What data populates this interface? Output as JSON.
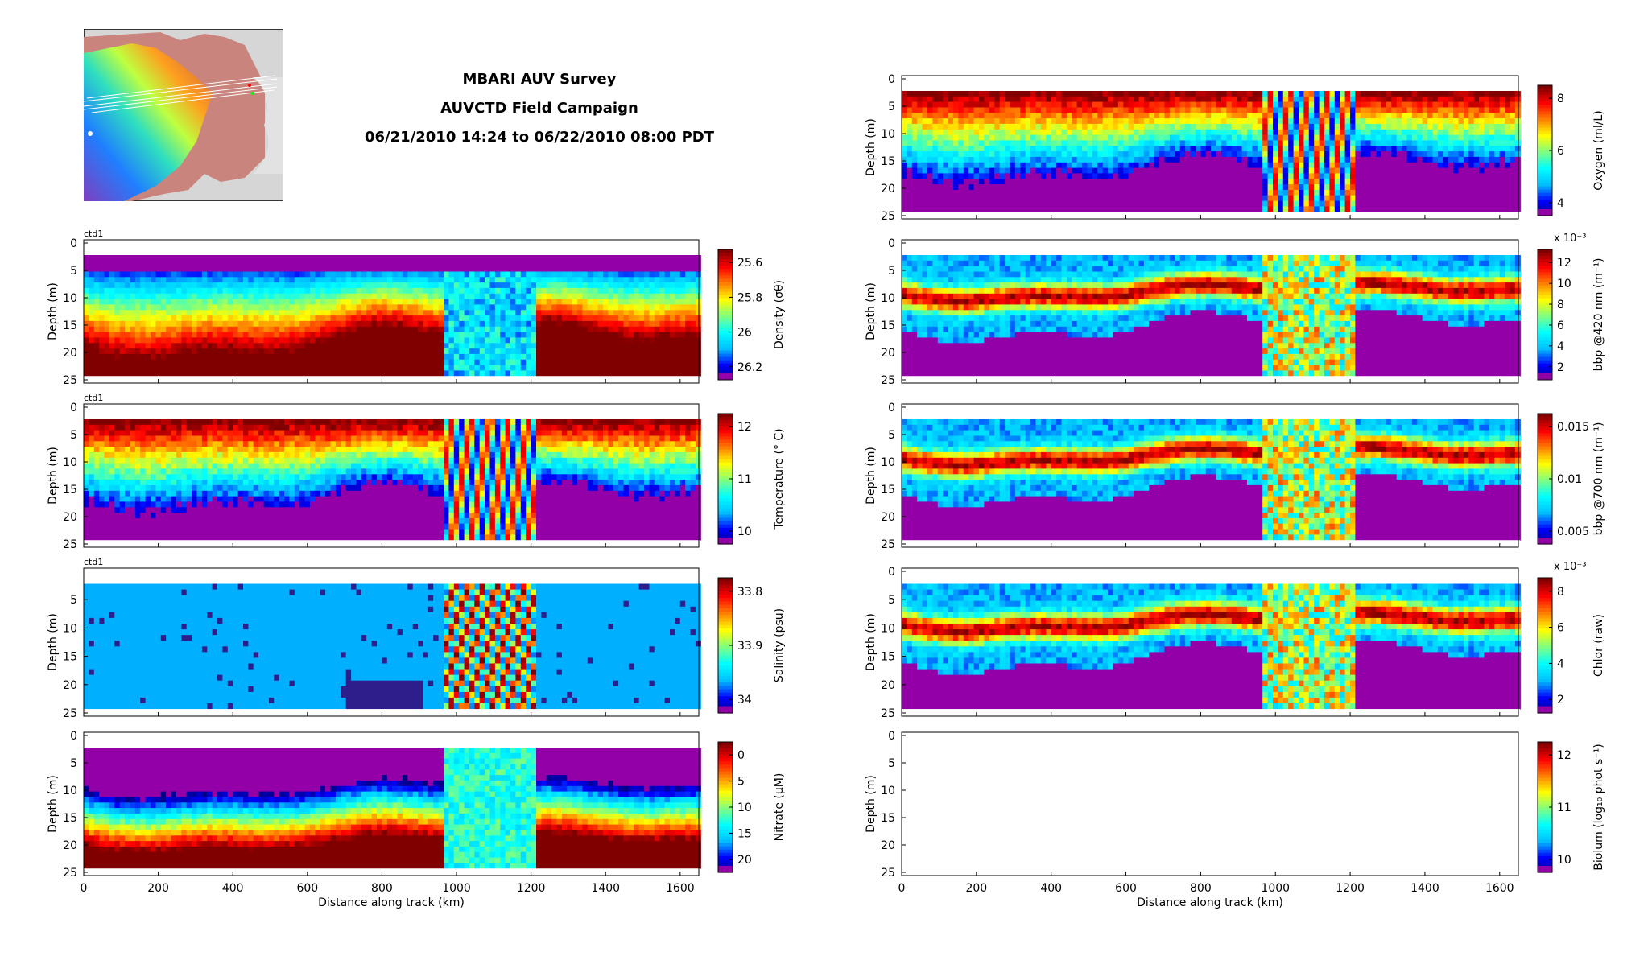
{
  "header": {
    "line1": "MBARI AUV Survey",
    "line2": "AUVCTD Field Campaign",
    "line3": "06/21/2010 14:24 to 06/22/2010 08:00 PDT"
  },
  "colors": {
    "jet": [
      "#000080",
      "#0000ff",
      "#00bfff",
      "#00ffff",
      "#7fff7f",
      "#ffff00",
      "#ff7f00",
      "#ff0000",
      "#800000"
    ],
    "low": "#9400a8"
  },
  "chart_data": [
    {
      "type": "heatmap",
      "id": "density",
      "corner_label": "ctd1",
      "ylabel": "Depth (m)",
      "xlabel": "",
      "xlim": [
        0,
        1650
      ],
      "ylim": [
        25,
        0
      ],
      "x_ticks": [
        0,
        200,
        400,
        600,
        800,
        1000,
        1200,
        1400,
        1600
      ],
      "y_ticks": [
        0,
        5,
        10,
        15,
        20,
        25
      ],
      "colorbar": {
        "label": "Density (σθ)",
        "ticks": [
          "25.6",
          "25.8",
          "26",
          "26.2"
        ],
        "reversed": true
      }
    },
    {
      "type": "heatmap",
      "id": "temperature",
      "corner_label": "ctd1",
      "ylabel": "Depth (m)",
      "xlabel": "",
      "xlim": [
        0,
        1650
      ],
      "ylim": [
        25,
        0
      ],
      "x_ticks": [
        0,
        200,
        400,
        600,
        800,
        1000,
        1200,
        1400,
        1600
      ],
      "y_ticks": [
        0,
        5,
        10,
        15,
        20,
        25
      ],
      "colorbar": {
        "label": "Temperature (° C)",
        "ticks": [
          "12",
          "11",
          "10"
        ],
        "reversed": false
      }
    },
    {
      "type": "heatmap",
      "id": "salinity",
      "corner_label": "ctd1",
      "ylabel": "Depth (m)",
      "xlabel": "",
      "xlim": [
        0,
        1650
      ],
      "ylim": [
        25,
        0
      ],
      "x_ticks": [
        0,
        200,
        400,
        600,
        800,
        1000,
        1200,
        1400,
        1600
      ],
      "y_ticks": [
        5,
        10,
        15,
        20,
        25
      ],
      "colorbar": {
        "label": "Salinity (psu)",
        "ticks": [
          "33.8",
          "33.9",
          "34"
        ],
        "reversed": true
      }
    },
    {
      "type": "heatmap",
      "id": "nitrate",
      "corner_label": "",
      "ylabel": "Depth (m)",
      "xlabel": "Distance along track (km)",
      "xlim": [
        0,
        1650
      ],
      "ylim": [
        25,
        0
      ],
      "x_ticks": [
        0,
        200,
        400,
        600,
        800,
        1000,
        1200,
        1400,
        1600
      ],
      "y_ticks": [
        0,
        5,
        10,
        15,
        20,
        25
      ],
      "colorbar": {
        "label": "Nitrate (μM)",
        "ticks": [
          "0",
          "5",
          "10",
          "15",
          "20"
        ],
        "reversed": true
      }
    },
    {
      "type": "heatmap",
      "id": "oxygen",
      "corner_label": "",
      "ylabel": "Depth (m)",
      "xlabel": "",
      "xlim": [
        0,
        1650
      ],
      "ylim": [
        25,
        0
      ],
      "x_ticks": [
        0,
        200,
        400,
        600,
        800,
        1000,
        1200,
        1400,
        1600
      ],
      "y_ticks": [
        0,
        5,
        10,
        15,
        20,
        25
      ],
      "colorbar": {
        "label": "Oxygen (ml/L)",
        "ticks": [
          "8",
          "6",
          "4"
        ],
        "reversed": false
      }
    },
    {
      "type": "heatmap",
      "id": "bbp420",
      "corner_label": "",
      "ylabel": "Depth (m)",
      "xlabel": "",
      "xlim": [
        0,
        1650
      ],
      "ylim": [
        25,
        0
      ],
      "x_ticks": [
        0,
        200,
        400,
        600,
        800,
        1000,
        1200,
        1400,
        1600
      ],
      "y_ticks": [
        0,
        5,
        10,
        15,
        20,
        25
      ],
      "colorbar": {
        "label": "bbp @420 nm (m⁻¹)",
        "ticks": [
          "12",
          "10",
          "8",
          "6",
          "4",
          "2"
        ],
        "reversed": false,
        "exponent": "x 10⁻³"
      }
    },
    {
      "type": "heatmap",
      "id": "bbp700",
      "corner_label": "",
      "ylabel": "Depth (m)",
      "xlabel": "",
      "xlim": [
        0,
        1650
      ],
      "ylim": [
        25,
        0
      ],
      "x_ticks": [
        0,
        200,
        400,
        600,
        800,
        1000,
        1200,
        1400,
        1600
      ],
      "y_ticks": [
        0,
        5,
        10,
        15,
        20,
        25
      ],
      "colorbar": {
        "label": "bbp @700 nm (m⁻¹)",
        "ticks": [
          "0.015",
          "0.01",
          "0.005"
        ],
        "reversed": false
      }
    },
    {
      "type": "heatmap",
      "id": "chlor",
      "corner_label": "",
      "ylabel": "Depth (m)",
      "xlabel": "",
      "xlim": [
        0,
        1650
      ],
      "ylim": [
        25,
        0
      ],
      "x_ticks": [
        0,
        200,
        400,
        600,
        800,
        1000,
        1200,
        1400,
        1600
      ],
      "y_ticks": [
        0,
        5,
        10,
        15,
        20,
        25
      ],
      "colorbar": {
        "label": "Chlor (raw)",
        "ticks": [
          "8",
          "6",
          "4",
          "2"
        ],
        "reversed": false,
        "exponent": "x 10⁻³"
      }
    },
    {
      "type": "heatmap",
      "id": "biolum",
      "corner_label": "",
      "ylabel": "Depth (m)",
      "xlabel": "Distance along track (km)",
      "xlim": [
        0,
        1650
      ],
      "ylim": [
        25,
        0
      ],
      "x_ticks": [
        0,
        200,
        400,
        600,
        800,
        1000,
        1200,
        1400,
        1600
      ],
      "y_ticks": [
        0,
        5,
        10,
        15,
        20,
        25
      ],
      "colorbar": {
        "label": "Biolum (log₁₀ phot s⁻¹)",
        "ticks": [
          "12",
          "11",
          "10"
        ],
        "reversed": false
      },
      "empty": true
    }
  ]
}
